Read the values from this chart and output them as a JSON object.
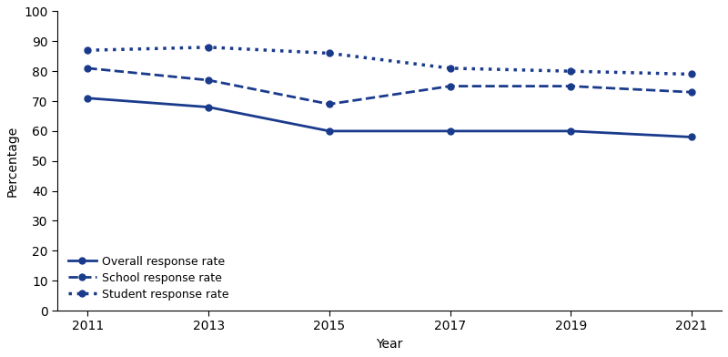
{
  "years": [
    2011,
    2013,
    2015,
    2017,
    2019,
    2021
  ],
  "overall_response_rate": [
    71,
    68,
    60,
    60,
    60,
    58
  ],
  "school_response_rate": [
    81,
    77,
    69,
    75,
    75,
    73
  ],
  "student_response_rate": [
    87,
    88,
    86,
    81,
    80,
    79
  ],
  "color": "#1a3a8c",
  "ylabel": "Percentage",
  "xlabel": "Year",
  "ylim": [
    0,
    100
  ],
  "yticks": [
    0,
    10,
    20,
    30,
    40,
    50,
    60,
    70,
    80,
    90,
    100
  ],
  "legend_labels": [
    "Overall response rate",
    "School response rate",
    "Student response rate"
  ],
  "legend_loc": "lower left"
}
